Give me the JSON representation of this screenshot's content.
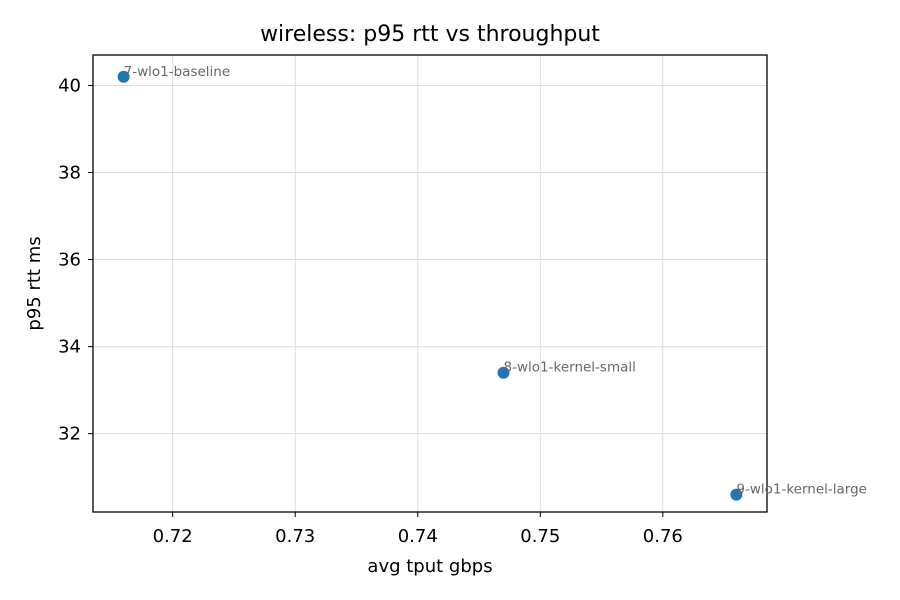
{
  "chart_data": {
    "type": "scatter",
    "title": "wireless: p95 rtt vs throughput",
    "xlabel": "avg tput gbps",
    "ylabel": "p95 rtt ms",
    "xlim": [
      0.7135,
      0.7685
    ],
    "ylim": [
      30.2,
      40.7
    ],
    "xticks": [
      0.72,
      0.73,
      0.74,
      0.75,
      0.76
    ],
    "xtick_labels": [
      "0.72",
      "0.73",
      "0.74",
      "0.75",
      "0.76"
    ],
    "yticks": [
      32,
      34,
      36,
      38,
      40
    ],
    "ytick_labels": [
      "32",
      "34",
      "36",
      "38",
      "40"
    ],
    "grid": true,
    "marker_color": "#1f77b4",
    "points": [
      {
        "x": 0.716,
        "y": 40.2,
        "label": "7-wlo1-baseline"
      },
      {
        "x": 0.747,
        "y": 33.4,
        "label": "8-wlo1-kernel-small"
      },
      {
        "x": 0.766,
        "y": 30.6,
        "label": "9-wlo1-kernel-large"
      }
    ]
  }
}
